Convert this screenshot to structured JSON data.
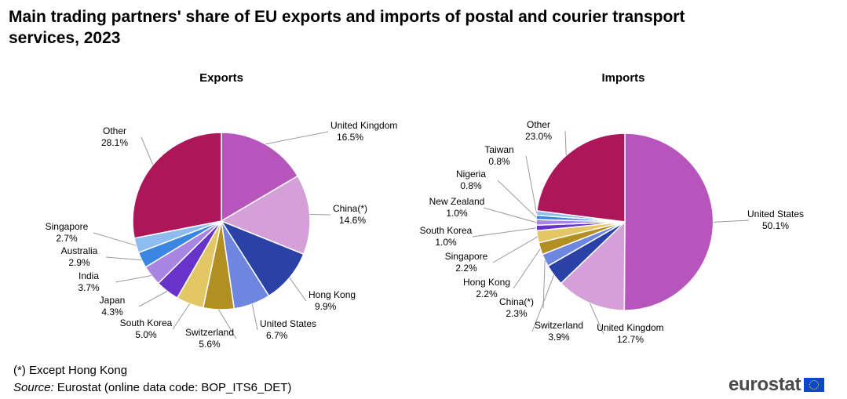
{
  "title": "Main trading partners' share of EU exports and imports of postal and courier transport services, 2023",
  "footnote": "(*) Except Hong Kong",
  "source": {
    "prefix": "Source:",
    "text": "Eurostat (online data code: BOP_ITS6_DET)"
  },
  "logo": {
    "text": "eurostat",
    "icon": "eu-flag-icon"
  },
  "chart_data": [
    {
      "type": "pie",
      "title": "Exports",
      "slices": [
        {
          "label": "United Kingdom",
          "value": 16.5,
          "display": "16.5%",
          "color": "#b656bd"
        },
        {
          "label": "China(*)",
          "value": 14.6,
          "display": "14.6%",
          "color": "#d59fd8"
        },
        {
          "label": "Hong Kong",
          "value": 9.9,
          "display": "9.9%",
          "color": "#2a41a5"
        },
        {
          "label": "United States",
          "value": 6.7,
          "display": "6.7%",
          "color": "#6d87e0"
        },
        {
          "label": "Switzerland",
          "value": 5.6,
          "display": "5.6%",
          "color": "#b28f22"
        },
        {
          "label": "South Korea",
          "value": 5.0,
          "display": "5.0%",
          "color": "#e3c766"
        },
        {
          "label": "Japan",
          "value": 4.3,
          "display": "4.3%",
          "color": "#6733c8"
        },
        {
          "label": "India",
          "value": 3.7,
          "display": "3.7%",
          "color": "#a785e1"
        },
        {
          "label": "Australia",
          "value": 2.9,
          "display": "2.9%",
          "color": "#3986e3"
        },
        {
          "label": "Singapore",
          "value": 2.7,
          "display": "2.7%",
          "color": "#8fbcf0"
        },
        {
          "label": "Other",
          "value": 28.1,
          "display": "28.1%",
          "color": "#ad175a"
        }
      ]
    },
    {
      "type": "pie",
      "title": "Imports",
      "slices": [
        {
          "label": "United States",
          "value": 50.1,
          "display": "50.1%",
          "color": "#b656bd"
        },
        {
          "label": "United Kingdom",
          "value": 12.7,
          "display": "12.7%",
          "color": "#d59fd8"
        },
        {
          "label": "Switzerland",
          "value": 3.9,
          "display": "3.9%",
          "color": "#2a41a5"
        },
        {
          "label": "China(*)",
          "value": 2.3,
          "display": "2.3%",
          "color": "#6d87e0"
        },
        {
          "label": "Hong Kong",
          "value": 2.2,
          "display": "2.2%",
          "color": "#b28f22"
        },
        {
          "label": "Singapore",
          "value": 2.2,
          "display": "2.2%",
          "color": "#e3c766"
        },
        {
          "label": "South Korea",
          "value": 1.0,
          "display": "1.0%",
          "color": "#6733c8"
        },
        {
          "label": "New Zealand",
          "value": 1.0,
          "display": "1.0%",
          "color": "#a785e1"
        },
        {
          "label": "Nigeria",
          "value": 0.8,
          "display": "0.8%",
          "color": "#3986e3"
        },
        {
          "label": "Taiwan",
          "value": 0.8,
          "display": "0.8%",
          "color": "#8fbcf0"
        },
        {
          "label": "Other",
          "value": 23.0,
          "display": "23.0%",
          "color": "#ad175a"
        }
      ]
    }
  ]
}
